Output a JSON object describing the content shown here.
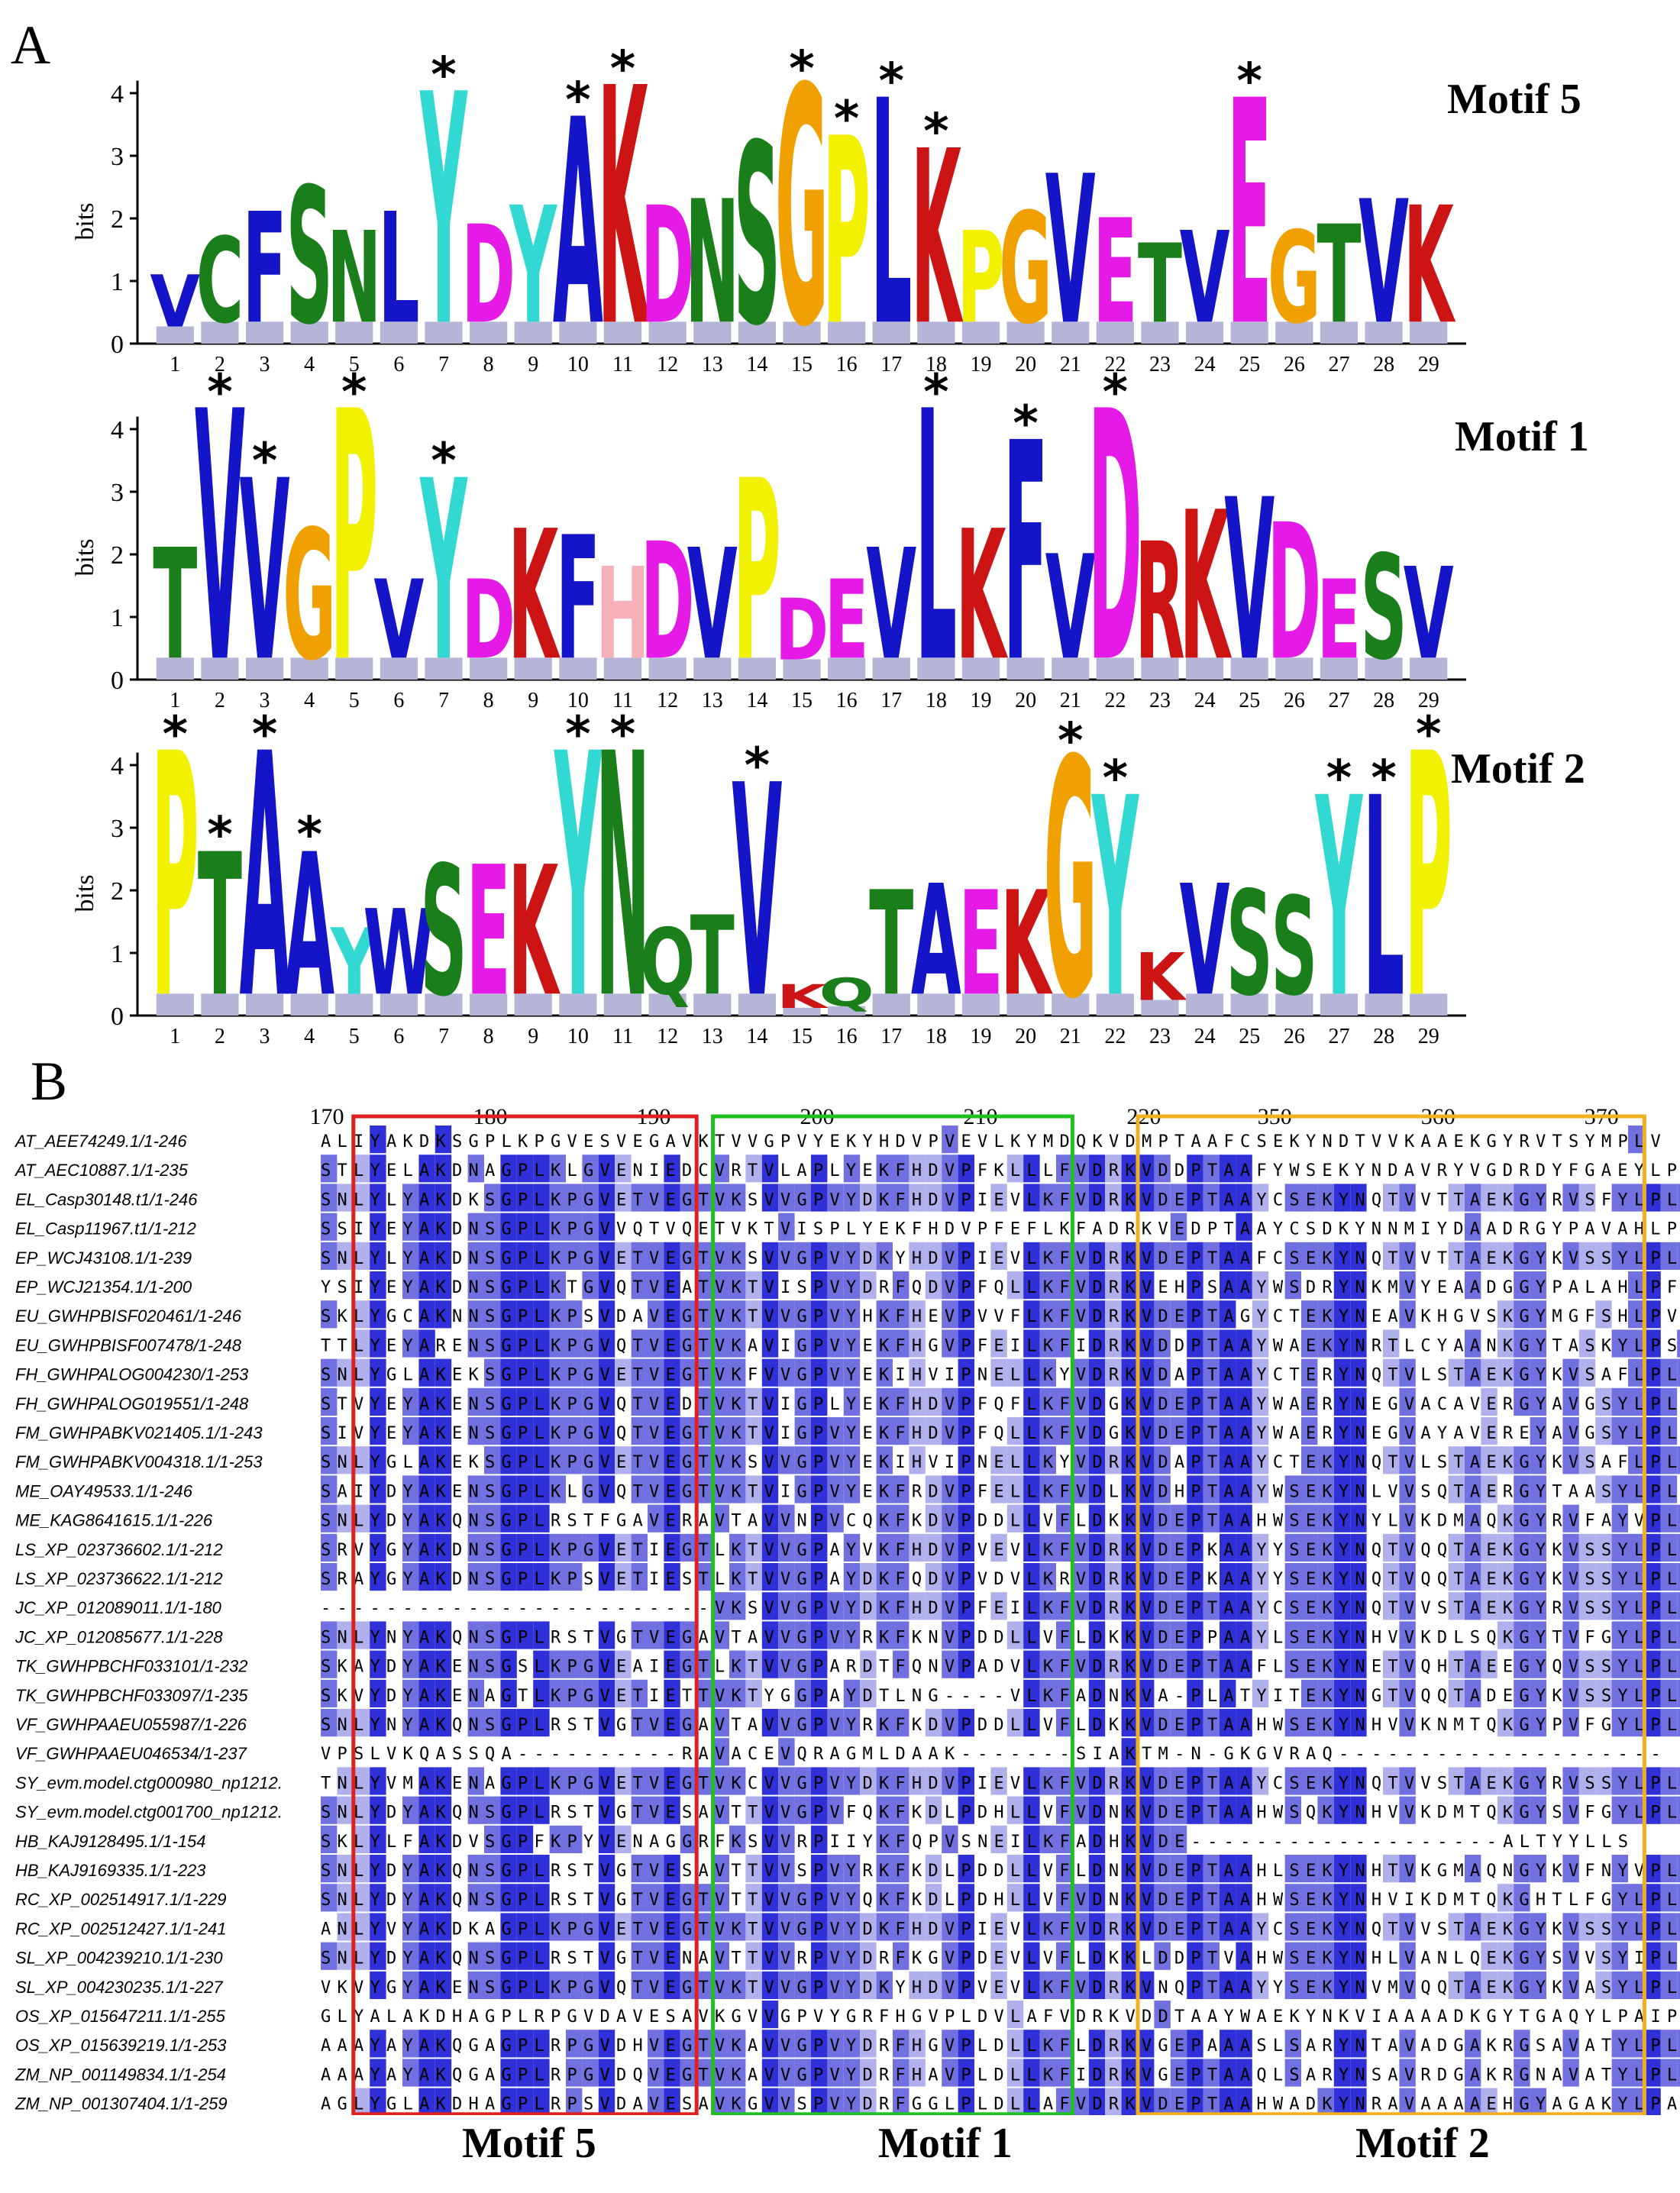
{
  "panel_a_label": "A",
  "panel_b_label": "B",
  "y_axis_label": "bits",
  "y_ticks": [
    "0",
    "1",
    "2",
    "3",
    "4"
  ],
  "motifs": [
    {
      "title": "Motif 5",
      "positions": [
        "1",
        "2",
        "3",
        "4",
        "5",
        "6",
        "7",
        "8",
        "9",
        "10",
        "11",
        "12",
        "13",
        "14",
        "15",
        "16",
        "17",
        "18",
        "19",
        "20",
        "21",
        "22",
        "23",
        "24",
        "25",
        "26",
        "27",
        "28",
        "29"
      ],
      "top_letters": [
        "V",
        "C",
        "F",
        "S",
        "N",
        "L",
        "Y",
        "D",
        "Y",
        "A",
        "K",
        "D",
        "N",
        "S",
        "G",
        "P",
        "L",
        "K",
        "P",
        "G",
        "V",
        "E",
        "T",
        "V",
        "E",
        "G",
        "T",
        "V",
        "K"
      ],
      "heights": [
        1.1,
        1.7,
        2.1,
        2.5,
        1.8,
        2.1,
        4.0,
        1.9,
        2.2,
        3.6,
        4.1,
        2.2,
        2.3,
        3.2,
        4.1,
        3.3,
        3.9,
        3.1,
        1.8,
        2.1,
        2.7,
        2.0,
        1.6,
        1.8,
        3.9,
        1.8,
        1.9,
        2.3,
        2.2
      ],
      "star_positions": [
        7,
        10,
        11,
        15,
        16,
        17,
        18,
        25
      ]
    },
    {
      "title": "Motif 1",
      "positions": [
        "1",
        "2",
        "3",
        "4",
        "5",
        "6",
        "7",
        "8",
        "9",
        "10",
        "11",
        "12",
        "13",
        "14",
        "15",
        "16",
        "17",
        "18",
        "19",
        "20",
        "21",
        "22",
        "23",
        "24",
        "25",
        "26",
        "27",
        "28",
        "29"
      ],
      "top_letters": [
        "T",
        "V",
        "V",
        "G",
        "P",
        "V",
        "Y",
        "D",
        "K",
        "F",
        "H",
        "D",
        "V",
        "P",
        "D",
        "E",
        "V",
        "L",
        "K",
        "F",
        "V",
        "D",
        "R",
        "K",
        "V",
        "D",
        "E",
        "S",
        "V"
      ],
      "heights": [
        2.1,
        4.3,
        3.2,
        2.4,
        4.3,
        1.6,
        3.2,
        1.6,
        2.4,
        2.3,
        1.8,
        2.2,
        2.1,
        3.2,
        1.3,
        1.6,
        2.1,
        4.3,
        2.4,
        3.8,
        2.0,
        4.3,
        2.2,
        2.7,
        2.9,
        2.5,
        1.6,
        2.0,
        1.8
      ],
      "star_positions": [
        2,
        3,
        5,
        7,
        18,
        20,
        22
      ]
    },
    {
      "title": "Motif 2",
      "positions": [
        "1",
        "2",
        "3",
        "4",
        "5",
        "6",
        "7",
        "8",
        "9",
        "10",
        "11",
        "12",
        "13",
        "14",
        "15",
        "16",
        "17",
        "18",
        "19",
        "20",
        "21",
        "22",
        "23",
        "24",
        "25",
        "26",
        "27",
        "28",
        "29"
      ],
      "top_letters": [
        "P",
        "T",
        "A",
        "A",
        "Y",
        "W",
        "S",
        "E",
        "K",
        "Y",
        "N",
        "Q",
        "T",
        "V",
        "K",
        "Q",
        "T",
        "A",
        "E",
        "K",
        "G",
        "Y",
        "K",
        "V",
        "S",
        "S",
        "Y",
        "L",
        "P"
      ],
      "heights": [
        4.2,
        2.6,
        4.2,
        2.6,
        1.4,
        1.7,
        2.4,
        2.4,
        2.4,
        4.2,
        4.2,
        1.4,
        1.6,
        3.7,
        0.5,
        0.6,
        2.0,
        2.1,
        2.0,
        2.0,
        4.1,
        3.5,
        1.0,
        2.1,
        2.0,
        1.9,
        3.5,
        3.5,
        4.2
      ],
      "star_positions": [
        1,
        2,
        3,
        4,
        10,
        11,
        14,
        21,
        22,
        27,
        28,
        29
      ]
    }
  ],
  "letter_colors": {
    "hydrophobic": "#1414c8",
    "K": "#cc1414",
    "R": "#cc1414",
    "D": "#e61ae6",
    "E": "#e61ae6",
    "S": "#1a7f1a",
    "T": "#1a7f1a",
    "N": "#1a7f1a",
    "Q": "#1a7f1a",
    "G": "#f0a000",
    "P": "#f2f200",
    "Y": "#32d9d2",
    "H": "#f5b0b8",
    "C": "#1a7f1a"
  },
  "alignment": {
    "ruler": [
      "170",
      "180",
      "190",
      "200",
      "210",
      "220",
      "350",
      "360",
      "370"
    ],
    "sequences": [
      {
        "name": "AT_AEE74249.1/1-246",
        "seq": "ALIYAKDKSGPLKPGVESVEGAVKTVVGPVYEKYHDVPVEVLKYMDQKVDMPTAAFCSEKYNDTVVKAAEKGYRVTSYMPLV"
      },
      {
        "name": "AT_AEC10887.1/1-235",
        "seq": "STLYELAKDNAGPLKLGVENIEDCVRTVLAPLYEKFHDVPFKLLLFVDRKVDDPTAAFYWSEKYNDAVRYVGDRDYFGAEYLPMI"
      },
      {
        "name": "EL_Casp30148.t1/1-246",
        "seq": "SNLYLYAKDKSGPLKPGVETVEGTVKSVVGPVYDKFHDVPIEVLKFVDRKVDEPTAAYCSEKYNQTVVTTAEKGYRVSFYLPLV"
      },
      {
        "name": "EL_Casp11967.t1/1-212",
        "seq": "SSIYEYAKDNSGPLKPGVVQTVQETVKTVISPLYEKFHDVPFEFLKFADRKVEDPTAAYCSDKYNNMIYDAADRGYPAVAHLPFI"
      },
      {
        "name": "EP_WCJ43108.1/1-239",
        "seq": "SNLYLYAKDNSGPLKPGVETVEGTVKSVVGPVYDKYHDVPIEVLKFVDRKVDEPTAAFCSEKYNQTVVTTAEKGYKVSSYLPLV"
      },
      {
        "name": "EP_WCJ21354.1/1-200",
        "seq": "YSIYEYAKDNSGPLKTGVQTVEATVKTVISPVYDRFQDVPFQLLKFVDRKVEHPSAAYWSDRYNKMVYEAADGGYPALAHLPFI"
      },
      {
        "name": "EU_GWHPBISF020461/1-246",
        "seq": "SKLYGCAKNNSGPLKPSVDAVEGTVKTVVGPVYHKFHEVPVVFLKFVDRKVDEPTAGYCTEKYNEAVKHGVSKGYMGFSHLPVI"
      },
      {
        "name": "EU_GWHPBISF007478/1-248",
        "seq": "TTLYEYARENSGPLKPGVQTVEGTVKAVIGPVYEKFHGVPFEILKFIDRKVDDPTAAYWAEKYNRTLCYAANKGYTASKYLPSV"
      },
      {
        "name": "FH_GWHPALOG004230/1-253",
        "seq": "SNLYGLAKEKSGPLKPGVETVEGTVKFVVGPVYEKIHVIPNELLKYVDRKVDAPTAAYCTERYNQTVLSTAEKGYKVSAFLPLV"
      },
      {
        "name": "FH_GWHPALOG019551/1-248",
        "seq": "STVYEYAKENSGPLKPGVQTVEDTVKTVIGPLYEKFHDVPFQFLKFVDGKVDEPTAAYWAERYNEGVACAVERGYAVGSYLPLI"
      },
      {
        "name": "FM_GWHPABKV021405.1/1-243",
        "seq": "SIVYEYAKENSGPLKPGVQTVEGTVKTVIGPVYEKFHDVPFQLLKFVDGKVDEPTAAYWAERYNEGVAYAVEREYAVGSYLPLI"
      },
      {
        "name": "FM_GWHPABKV004318.1/1-253",
        "seq": "SNLYGLAKEKSGPLKPGVETVEGTVKSVVGPVYEKIHVIPNELLKYVDRKVDAPTAAYCTEKYNQTVLSTAEKGYKVSAFLPLV"
      },
      {
        "name": "ME_OAY49533.1/1-246",
        "seq": "SAIYDYAKENSGPLKLGVQTVEGTVKTVIGPVYEKFRDVPFELLKFVDLKVDHPTAAYWSEKYNLVVSQTAERGYTAASYLPLI"
      },
      {
        "name": "ME_KAG8641615.1/1-226",
        "seq": "SNLYDYAKQNSGPLRSTFGAVERAVTAVVNPVCQKFKDVPDDLLVFLDKKVDEPTAAHWSEKYNYLVKDMAQKGYRVFAYVPLV"
      },
      {
        "name": "LS_XP_023736602.1/1-212",
        "seq": "SRVYGYAKDNSGPLKPGVETIEGTLKTVVGPAYVKFHDVPVEVLKFVDRKVDEPKAAYYSEKYNQTVQQTAEKGYKVSSYLPLV"
      },
      {
        "name": "LS_XP_023736622.1/1-212",
        "seq": "SRAYGYAKDNSGPLKPSVETIESTLKTVVGPAYDKFQDVPVDVLKRVDRKVDEPKAAYYSEKYNQTVQQTAEKGYKVSSYLPLV"
      },
      {
        "name": "JC_XP_012089011.1/1-180",
        "seq": "------------------------VKSVVGPVYDKFHDVPFEILKFVDRKVDEPTAAYCSEKYNQTVVSTAEKGYRVSSYLPLV"
      },
      {
        "name": "JC_XP_012085677.1/1-228",
        "seq": "SNLYNYAKQNSGPLRSTVGTVEGAVTAVVGPVYRKFKNVPDDLLVFLDKKVDEPPAAYLSEKYNHVVKDLSQKGYTVFGYLPLV"
      },
      {
        "name": "TK_GWHPBCHF033101/1-232",
        "seq": "SKAYDYAKENSGSLKPGVEAIEGTLKTVVGPARDTFQNVPADVLKFVDRKVDEPTAAFLSEKYNETVQHTAEEGYQVSSYLPLV"
      },
      {
        "name": "TK_GWHPBCHF033097/1-235",
        "seq": "SKVYDYAKENAGTLKPGVETIETTVKTYGGPAYDTLNG----VLKFADNKVA-PLATYITEKYNGTVQQTADEGYKVSSYLPLV"
      },
      {
        "name": "VF_GWHPAAEU055987/1-226",
        "seq": "SNLYNYAKQNSGPLRSTVGTVEGAVTAVVGPVYRKFKDVPDDLLVFLDKKVDEPTAAHWSEKYNHVVKNMTQKGYPVFGYLPLV"
      },
      {
        "name": "VF_GWHPAAEU046534/1-237",
        "seq": "VPSLVKQASSQA----------RAVACEVQRAGMLDAAK-------SIAKTM-N-GKGVRAQ--------------------"
      },
      {
        "name": "SY_evm.model.ctg000980_np1212.",
        "seq": "TNLYVMAKENAGPLKPGVETVEGTVKCVVGPVYDKFHDVPIEVLKFVDRKVDEPTAAYCSEKYNQTVVSTAEKGYRVSSYLPLV"
      },
      {
        "name": "SY_evm.model.ctg001700_np1212.",
        "seq": "SNLYDYAKQNSGPLRSTVGTVESAVTTVVGPVFQKFKDLPDHLLVFVDNKVDEPTAAHWSQKYNHVVKDMTQKGYSVFGYLPLV"
      },
      {
        "name": "HB_KAJ9128495.1/1-154",
        "seq": "SKLYLFAKDVSGPFKPYVENAGGRFKSVVRPIIYKFQPVSNEILKFADHKVDE-------------------ALTYYLLS"
      },
      {
        "name": "HB_KAJ9169335.1/1-223",
        "seq": "SNLYDYAKQNSGPLRSTVGTVESAVTTVVSPVYRKFKDLPDDLLVFLDNKVDEPTAAHLSEKYNHTVKGMAQNGYKVFNYVPLV"
      },
      {
        "name": "RC_XP_002514917.1/1-229",
        "seq": "SNLYDYAKQNSGPLRSTVGTVEGTVTTVVGPVYQKFKDLPDHLLVFVDNKVDEPTAAHWSEKYNHVIKDMTQKGHTLFGYLPLV"
      },
      {
        "name": "RC_XP_002512427.1/1-241",
        "seq": "ANLYVYAKDKAGPLKPGVETVEGTVKTVVGPVYDKFHDVPIEVLKFVDRKVDEPTAAYCSEKYNQTVVSTAEKGYKVSSYLPLV"
      },
      {
        "name": "SL_XP_004239210.1/1-230",
        "seq": "SNLYDYAKQNSGPLRSTVGTVENAVTTVVRPVYDRFKGVPDEVLVFLDKKLDDPTVAHWSEKYNHLVANLQEKGYSVVSYIPLI"
      },
      {
        "name": "SL_XP_004230235.1/1-227",
        "seq": "VKVYGYAKENSGPLKPGVQTVEGTVKTVVGPVYDKYHDVPVEVLKFVDRKVNQPTAAYYSEKYNVMVQQTAEKGYKVASYLPLV"
      },
      {
        "name": "OS_XP_015647211.1/1-255",
        "seq": "GLYALAKDHAGPLRPGVDAVESAVKGVVGPVYGRFHGVPLDVLAFVDRKVDDTAAYWAEKYNKVIAAAADKGYTGAQYLPAIP"
      },
      {
        "name": "OS_XP_015639219.1/1-253",
        "seq": "AAAYAYAKQGAGPLRPGVDHVEGTVKAVVGPVYDRFHGVPLDLLKFLDRKVGEPAAASLSARYNTAVADGAKRGSAVATYLPLV"
      },
      {
        "name": "ZM_NP_001149834.1/1-254",
        "seq": "AAAYAYAKQGAGPLRPGVDQVEGTVKAVVGPVYDRFHAVPLDLLKFIDRKVGEPTAAQLSARYNSAVRDGAKRGNAVATYLPLV"
      },
      {
        "name": "ZM_NP_001307404.1/1-259",
        "seq": "AGLYGLAKDHAGPLRPSVDAVESAVKGVVSPVYDRFGGLPLDLLAFVDRKVDEPTAAHWADKYNRAVAAAAEHGYAGAKYLPAI"
      }
    ],
    "box_labels": [
      "Motif 5",
      "Motif 1",
      "Motif 2"
    ],
    "box_colors": [
      "#e02020",
      "#1fc01f",
      "#f0b020"
    ]
  }
}
